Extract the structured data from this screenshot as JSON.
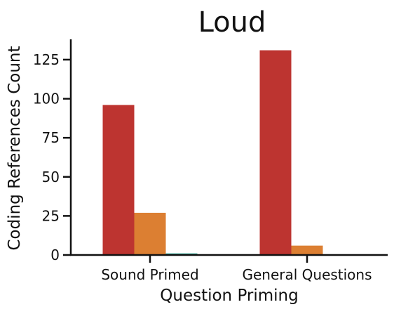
{
  "chart_data": {
    "type": "bar",
    "title": "Loud",
    "xlabel": "Question Priming",
    "ylabel": "Coding References Count",
    "categories": [
      "Sound Primed",
      "General Questions"
    ],
    "series": [
      {
        "color": "#bd3430",
        "values": [
          96,
          131
        ]
      },
      {
        "color": "#dc7f32",
        "values": [
          27,
          6
        ]
      },
      {
        "color": "#1f9e89",
        "values": [
          1,
          0
        ]
      }
    ],
    "ylim": [
      0,
      138
    ],
    "yticks": [
      0,
      25,
      50,
      75,
      100,
      125
    ],
    "grid": false,
    "legend": "none"
  }
}
